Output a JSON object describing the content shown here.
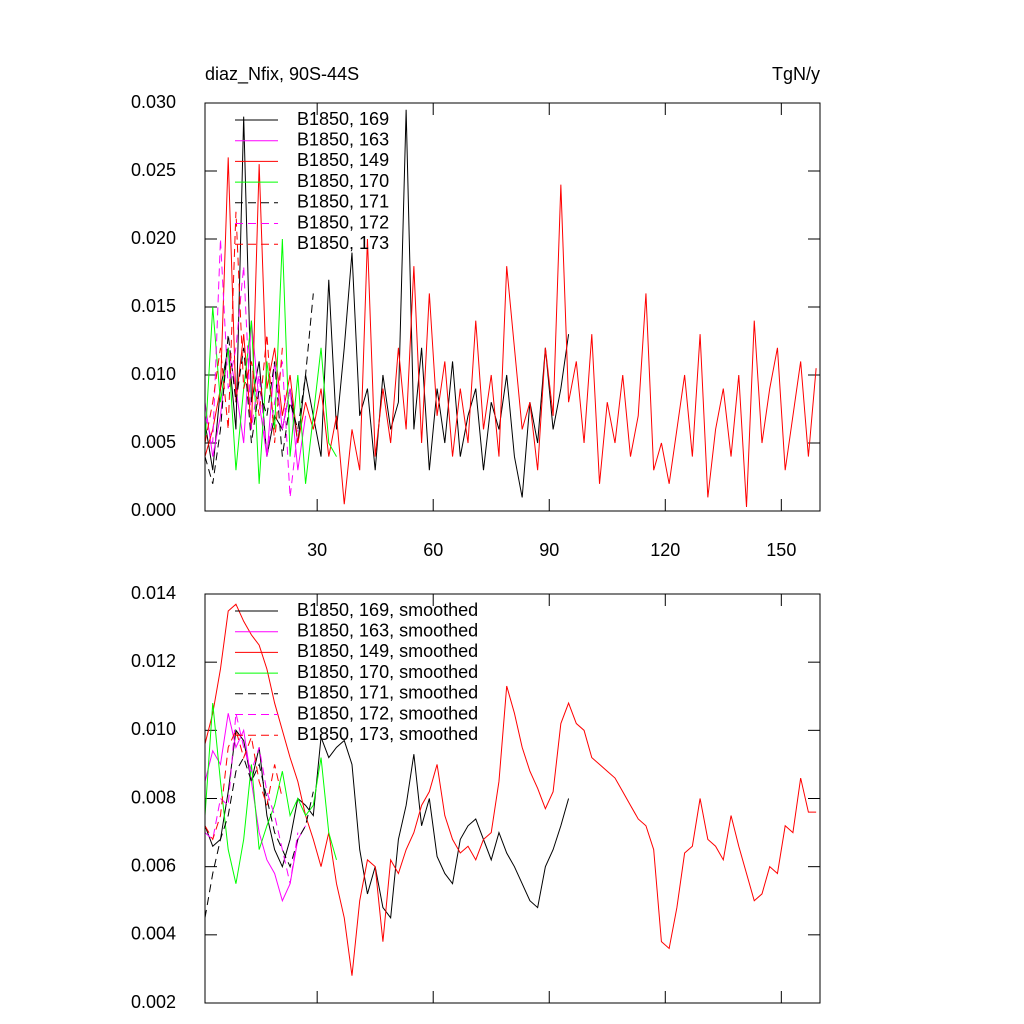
{
  "chart_data": [
    {
      "type": "line",
      "title": "diaz_Nfix, 90S-44S",
      "units": "TgN/y",
      "xlim": [
        1,
        160
      ],
      "xticks": [
        30,
        60,
        90,
        120,
        150
      ],
      "show_xtick_labels": true,
      "ylim": [
        0,
        0.03
      ],
      "yticks": [
        {
          "value": 0,
          "label": "0.000"
        },
        {
          "value": 0.005,
          "label": "0.005"
        },
        {
          "value": 0.01,
          "label": "0.010"
        },
        {
          "value": 0.015,
          "label": "0.015"
        },
        {
          "value": 0.02,
          "label": "0.020"
        },
        {
          "value": 0.025,
          "label": "0.025"
        },
        {
          "value": 0.03,
          "label": "0.030"
        }
      ],
      "series": [
        {
          "name": "B1850, 169",
          "color": "#000000",
          "dashed": false,
          "x": [
            1,
            3,
            5,
            7,
            9,
            11,
            13,
            15,
            17,
            19,
            21,
            23,
            25,
            27,
            29,
            31,
            33,
            35,
            37,
            39,
            41,
            43,
            45,
            47,
            49,
            51,
            53,
            55,
            57,
            59,
            61,
            63,
            65,
            67,
            69,
            71,
            73,
            75,
            77,
            79,
            81,
            83,
            85,
            87,
            89,
            91,
            93,
            95
          ],
          "values": [
            0.0065,
            0.003,
            0.009,
            0.012,
            0.006,
            0.029,
            0.008,
            0.011,
            0.004,
            0.007,
            0.006,
            0.009,
            0.005,
            0.01,
            0.007,
            0.004,
            0.017,
            0.006,
            0.012,
            0.019,
            0.007,
            0.009,
            0.003,
            0.01,
            0.006,
            0.008,
            0.0295,
            0.006,
            0.012,
            0.003,
            0.009,
            0.005,
            0.011,
            0.004,
            0.007,
            0.009,
            0.003,
            0.008,
            0.006,
            0.01,
            0.004,
            0.001,
            0.008,
            0.005,
            0.012,
            0.006,
            0.009,
            0.013
          ]
        },
        {
          "name": "B1850, 163",
          "color": "#ff00ff",
          "dashed": false,
          "x": [
            1,
            3,
            5,
            7,
            9,
            11,
            13,
            15,
            17,
            19,
            21,
            23,
            25,
            27
          ],
          "values": [
            0.008,
            0.004,
            0.007,
            0.012,
            0.009,
            0.005,
            0.014,
            0.008,
            0.004,
            0.011,
            0.006,
            0.009,
            0.003,
            0.007
          ]
        },
        {
          "name": "B1850, 149",
          "color": "#ff0000",
          "dashed": false,
          "x": [
            1,
            3,
            5,
            7,
            9,
            11,
            13,
            15,
            17,
            19,
            21,
            23,
            25,
            27,
            29,
            31,
            33,
            35,
            37,
            39,
            41,
            43,
            45,
            47,
            49,
            51,
            53,
            55,
            57,
            59,
            61,
            63,
            65,
            67,
            69,
            71,
            73,
            75,
            77,
            79,
            81,
            83,
            85,
            87,
            89,
            91,
            93,
            95,
            97,
            99,
            101,
            103,
            105,
            107,
            109,
            111,
            113,
            115,
            117,
            119,
            121,
            123,
            125,
            127,
            129,
            131,
            133,
            135,
            137,
            139,
            141,
            143,
            145,
            147,
            149,
            151,
            153,
            155,
            157,
            159
          ],
          "values": [
            0.004,
            0.006,
            0.009,
            0.026,
            0.008,
            0.013,
            0.006,
            0.0255,
            0.009,
            0.012,
            0.007,
            0.01,
            0.005,
            0.008,
            0.006,
            0.009,
            0.004,
            0.007,
            0.0005,
            0.006,
            0.003,
            0.02,
            0.004,
            0.009,
            0.005,
            0.012,
            0.006,
            0.018,
            0.005,
            0.016,
            0.007,
            0.011,
            0.004,
            0.009,
            0.005,
            0.014,
            0.006,
            0.01,
            0.004,
            0.018,
            0.012,
            0.006,
            0.008,
            0.003,
            0.012,
            0.007,
            0.024,
            0.008,
            0.011,
            0.005,
            0.013,
            0.002,
            0.008,
            0.005,
            0.01,
            0.004,
            0.007,
            0.016,
            0.003,
            0.005,
            0.002,
            0.006,
            0.01,
            0.004,
            0.013,
            0.001,
            0.006,
            0.009,
            0.004,
            0.01,
            0.0003,
            0.014,
            0.005,
            0.009,
            0.012,
            0.003,
            0.007,
            0.011,
            0.004,
            0.0105
          ]
        },
        {
          "name": "B1850, 170",
          "color": "#00ff00",
          "dashed": false,
          "x": [
            1,
            3,
            5,
            7,
            9,
            11,
            13,
            15,
            17,
            19,
            21,
            23,
            25,
            27,
            29,
            31,
            33,
            35
          ],
          "values": [
            0.005,
            0.015,
            0.008,
            0.012,
            0.003,
            0.009,
            0.014,
            0.002,
            0.011,
            0.006,
            0.02,
            0.004,
            0.01,
            0.002,
            0.007,
            0.012,
            0.005,
            0.004
          ]
        },
        {
          "name": "B1850, 171",
          "color": "#000000",
          "dashed": true,
          "x": [
            1,
            3,
            5,
            7,
            9,
            11,
            13,
            15,
            17,
            19,
            21,
            23,
            25,
            27,
            29
          ],
          "values": [
            0.004,
            0.002,
            0.006,
            0.013,
            0.008,
            0.012,
            0.005,
            0.009,
            0.007,
            0.011,
            0.004,
            0.008,
            0.006,
            0.01,
            0.016
          ]
        },
        {
          "name": "B1850, 172",
          "color": "#ff00ff",
          "dashed": true,
          "x": [
            1,
            3,
            5,
            7,
            9,
            11,
            13,
            15,
            17,
            19,
            21,
            23,
            25
          ],
          "values": [
            0.007,
            0.005,
            0.02,
            0.009,
            0.012,
            0.018,
            0.006,
            0.01,
            0.004,
            0.008,
            0.011,
            0.001,
            0.006
          ]
        },
        {
          "name": "B1850, 173",
          "color": "#ff0000",
          "dashed": true,
          "x": [
            1,
            3,
            5,
            7,
            9,
            11,
            13,
            15,
            17,
            19,
            21
          ],
          "values": [
            0.005,
            0.008,
            0.012,
            0.006,
            0.022,
            0.009,
            0.011,
            0.007,
            0.013,
            0.005,
            0.012
          ]
        }
      ]
    },
    {
      "type": "line",
      "xlim": [
        1,
        160
      ],
      "xticks": [
        30,
        60,
        90,
        120,
        150
      ],
      "show_xtick_labels": false,
      "ylim": [
        0.002,
        0.014
      ],
      "yticks": [
        {
          "value": 0.002,
          "label": "0.002"
        },
        {
          "value": 0.004,
          "label": "0.004"
        },
        {
          "value": 0.006,
          "label": "0.006"
        },
        {
          "value": 0.008,
          "label": "0.008"
        },
        {
          "value": 0.01,
          "label": "0.010"
        },
        {
          "value": 0.012,
          "label": "0.012"
        },
        {
          "value": 0.014,
          "label": "0.014"
        }
      ],
      "series": [
        {
          "name": "B1850, 169, smoothed",
          "color": "#000000",
          "dashed": false,
          "x": [
            1,
            3,
            5,
            7,
            9,
            11,
            13,
            15,
            17,
            19,
            21,
            23,
            25,
            27,
            29,
            31,
            33,
            35,
            37,
            39,
            41,
            43,
            45,
            47,
            49,
            51,
            53,
            55,
            57,
            59,
            61,
            63,
            65,
            67,
            69,
            71,
            73,
            75,
            77,
            79,
            81,
            83,
            85,
            87,
            89,
            91,
            93,
            95
          ],
          "values": [
            0.0072,
            0.0066,
            0.0068,
            0.0082,
            0.01,
            0.0097,
            0.0085,
            0.0095,
            0.0075,
            0.0065,
            0.006,
            0.0068,
            0.008,
            0.0078,
            0.0075,
            0.0098,
            0.0092,
            0.0095,
            0.0097,
            0.009,
            0.0065,
            0.0052,
            0.006,
            0.0048,
            0.0045,
            0.0068,
            0.0078,
            0.0093,
            0.0072,
            0.008,
            0.0063,
            0.0058,
            0.0055,
            0.0068,
            0.0072,
            0.0074,
            0.0068,
            0.0062,
            0.007,
            0.0064,
            0.006,
            0.0055,
            0.005,
            0.0048,
            0.006,
            0.0065,
            0.0072,
            0.008
          ]
        },
        {
          "name": "B1850, 163, smoothed",
          "color": "#ff00ff",
          "dashed": false,
          "x": [
            1,
            3,
            5,
            7,
            9,
            11,
            13,
            15,
            17,
            19,
            21,
            23,
            25,
            27
          ],
          "values": [
            0.0085,
            0.0094,
            0.009,
            0.0105,
            0.0095,
            0.01,
            0.0085,
            0.007,
            0.0062,
            0.0058,
            0.005,
            0.0055,
            0.0068,
            0.0072
          ]
        },
        {
          "name": "B1850, 149, smoothed",
          "color": "#ff0000",
          "dashed": false,
          "x": [
            1,
            3,
            5,
            7,
            9,
            11,
            13,
            15,
            17,
            19,
            21,
            23,
            25,
            27,
            29,
            31,
            33,
            35,
            37,
            39,
            41,
            43,
            45,
            47,
            49,
            51,
            53,
            55,
            57,
            59,
            61,
            63,
            65,
            67,
            69,
            71,
            73,
            75,
            77,
            79,
            81,
            83,
            85,
            87,
            89,
            91,
            93,
            95,
            97,
            99,
            101,
            103,
            105,
            107,
            109,
            111,
            113,
            115,
            117,
            119,
            121,
            123,
            125,
            127,
            129,
            131,
            133,
            135,
            137,
            139,
            141,
            143,
            145,
            147,
            149,
            151,
            153,
            155,
            157,
            159
          ],
          "values": [
            0.0096,
            0.0105,
            0.0118,
            0.0135,
            0.0137,
            0.0132,
            0.0128,
            0.0125,
            0.0118,
            0.0108,
            0.01,
            0.0092,
            0.0085,
            0.0075,
            0.0068,
            0.006,
            0.007,
            0.0055,
            0.0045,
            0.0028,
            0.005,
            0.0062,
            0.006,
            0.0038,
            0.0062,
            0.0058,
            0.0065,
            0.007,
            0.0078,
            0.0082,
            0.009,
            0.0075,
            0.0068,
            0.0064,
            0.0066,
            0.0062,
            0.0068,
            0.007,
            0.0085,
            0.0113,
            0.0105,
            0.0095,
            0.0088,
            0.0083,
            0.0077,
            0.0082,
            0.0102,
            0.0108,
            0.0102,
            0.01,
            0.0092,
            0.009,
            0.0088,
            0.0086,
            0.0082,
            0.0078,
            0.0074,
            0.0072,
            0.0065,
            0.0038,
            0.0036,
            0.0048,
            0.0064,
            0.0066,
            0.008,
            0.0068,
            0.0066,
            0.0062,
            0.0075,
            0.0066,
            0.0058,
            0.005,
            0.0052,
            0.006,
            0.0058,
            0.0072,
            0.007,
            0.0086,
            0.0076,
            0.0076
          ]
        },
        {
          "name": "B1850, 170, smoothed",
          "color": "#00ff00",
          "dashed": false,
          "x": [
            1,
            3,
            5,
            7,
            9,
            11,
            13,
            15,
            17,
            19,
            21,
            23,
            25,
            27,
            29,
            31,
            33,
            35
          ],
          "values": [
            0.0075,
            0.0108,
            0.0085,
            0.0065,
            0.0055,
            0.0068,
            0.009,
            0.0065,
            0.0072,
            0.0078,
            0.0088,
            0.0075,
            0.008,
            0.0075,
            0.0078,
            0.0092,
            0.007,
            0.0062
          ]
        },
        {
          "name": "B1850, 171, smoothed",
          "color": "#000000",
          "dashed": true,
          "x": [
            1,
            3,
            5,
            7,
            9,
            11,
            13,
            15,
            17,
            19,
            21,
            23,
            25,
            27,
            29
          ],
          "values": [
            0.0045,
            0.0058,
            0.0068,
            0.0075,
            0.0088,
            0.0092,
            0.0085,
            0.009,
            0.008,
            0.007,
            0.0065,
            0.006,
            0.0068,
            0.0072,
            0.0082
          ]
        },
        {
          "name": "B1850, 172, smoothed",
          "color": "#ff00ff",
          "dashed": true,
          "x": [
            1,
            3,
            5,
            7,
            9,
            11,
            13,
            15,
            17,
            19,
            21,
            23,
            25
          ],
          "values": [
            0.007,
            0.0068,
            0.008,
            0.0078,
            0.0105,
            0.0095,
            0.0088,
            0.0095,
            0.0082,
            0.0075,
            0.0065,
            0.0055,
            0.007
          ]
        },
        {
          "name": "B1850, 173, smoothed",
          "color": "#ff0000",
          "dashed": true,
          "x": [
            1,
            3,
            5,
            7,
            9,
            11,
            13,
            15,
            17,
            19,
            21
          ],
          "values": [
            0.0072,
            0.0068,
            0.0075,
            0.0095,
            0.01,
            0.0092,
            0.0098,
            0.0085,
            0.0078,
            0.009,
            0.008
          ]
        }
      ]
    }
  ]
}
